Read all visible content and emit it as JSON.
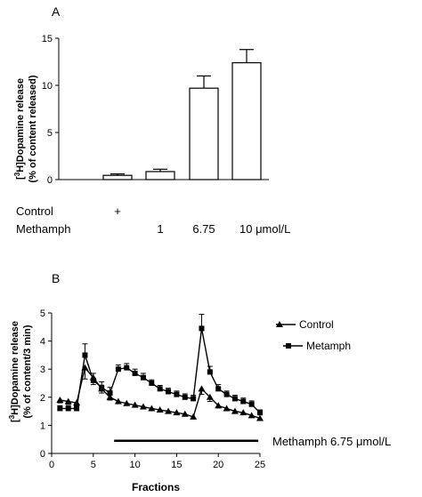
{
  "chart_data": [
    {
      "panel": "A",
      "type": "bar",
      "ylabel_line1": "[3H]Dopamine release",
      "ylabel_line2": "(% of content released)",
      "ylim": [
        0,
        15
      ],
      "yticks": [
        "0",
        "5",
        "10",
        "15"
      ],
      "bars": [
        {
          "value": 0,
          "error": 0
        },
        {
          "value": 0.45,
          "error": 0.15
        },
        {
          "value": 0.85,
          "error": 0.25
        },
        {
          "value": 9.7,
          "error": 1.3
        },
        {
          "value": 12.4,
          "error": 1.4
        }
      ],
      "rows": [
        {
          "label": "Control",
          "cells": [
            "",
            "+",
            "",
            "",
            ""
          ]
        },
        {
          "label": "Methamph",
          "cells": [
            "",
            "",
            "1",
            "6.75",
            "10 μmol/L"
          ]
        }
      ]
    },
    {
      "panel": "B",
      "type": "line",
      "ylabel_line1": "[3H]Dopamine release",
      "ylabel_line2": "(% of content/3 min)",
      "xlabel": "Fractions",
      "xlim": [
        0,
        25
      ],
      "ylim": [
        0,
        5
      ],
      "xticks": [
        "0",
        "5",
        "10",
        "15",
        "20",
        "25"
      ],
      "yticks": [
        "0",
        "1",
        "2",
        "3",
        "4",
        "5"
      ],
      "series": [
        {
          "name": "Control",
          "marker": "triangle",
          "x": [
            1,
            2,
            3,
            4,
            5,
            6,
            7,
            8,
            9,
            10,
            11,
            12,
            13,
            14,
            15,
            16,
            17,
            18,
            19,
            20,
            21,
            22,
            23,
            24,
            25
          ],
          "y": [
            1.9,
            1.85,
            1.8,
            3.05,
            2.7,
            2.3,
            2.0,
            1.85,
            1.78,
            1.72,
            1.66,
            1.6,
            1.55,
            1.5,
            1.45,
            1.4,
            1.3,
            2.3,
            2.0,
            1.7,
            1.6,
            1.5,
            1.45,
            1.35,
            1.25
          ],
          "err": [
            0.1,
            0.1,
            0.1,
            0.4,
            0.25,
            0.15,
            0.1,
            0.08,
            0.07,
            0.06,
            0.06,
            0.06,
            0.06,
            0.06,
            0.06,
            0.05,
            0.05,
            0.2,
            0.15,
            0.08,
            0.07,
            0.06,
            0.06,
            0.06,
            0.05
          ]
        },
        {
          "name": "Metamph",
          "marker": "square",
          "x": [
            1,
            2,
            3,
            4,
            5,
            6,
            7,
            8,
            9,
            10,
            11,
            12,
            13,
            14,
            15,
            16,
            17,
            18,
            19,
            20,
            21,
            22,
            23,
            24,
            25
          ],
          "y": [
            1.6,
            1.6,
            1.6,
            3.5,
            2.6,
            2.35,
            2.15,
            3.0,
            3.05,
            2.85,
            2.7,
            2.5,
            2.3,
            2.2,
            2.1,
            2.0,
            1.95,
            4.45,
            2.9,
            2.3,
            2.1,
            1.95,
            1.85,
            1.75,
            1.45
          ],
          "err": [
            0.1,
            0.1,
            0.1,
            0.4,
            0.25,
            0.2,
            0.2,
            0.15,
            0.15,
            0.15,
            0.15,
            0.12,
            0.12,
            0.12,
            0.12,
            0.12,
            0.12,
            0.5,
            0.2,
            0.15,
            0.12,
            0.12,
            0.12,
            0.12,
            0.1
          ]
        }
      ],
      "treatment_bar": {
        "x_start": 7.5,
        "x_end": 24.8,
        "y": 0.45,
        "label": "Methamph 6.75 μmol/L"
      }
    }
  ]
}
